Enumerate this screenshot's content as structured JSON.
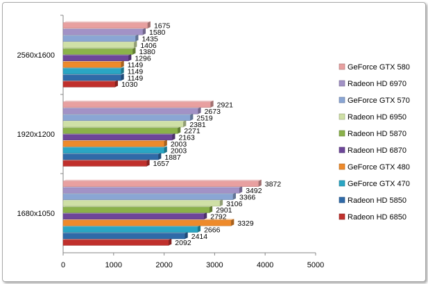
{
  "chart_data": {
    "type": "bar",
    "orientation": "horizontal",
    "title": "",
    "xlabel": "",
    "ylabel": "",
    "xlim": [
      0,
      5000
    ],
    "x_ticks": [
      "0",
      "1000",
      "2000",
      "3000",
      "4000",
      "5000"
    ],
    "categories": [
      "1680x1050",
      "1920x1200",
      "2560x1600"
    ],
    "grid": false,
    "legend_position": "right",
    "series": [
      {
        "name": "Radeon HD 6850",
        "color": "#c0302c",
        "values": [
          2092,
          1657,
          1030
        ]
      },
      {
        "name": "Radeon HD 5850",
        "color": "#2f6aa8",
        "values": [
          2414,
          1887,
          1149
        ]
      },
      {
        "name": "GeForce GTX 470",
        "color": "#2aa6c4",
        "values": [
          2666,
          2003,
          1149
        ]
      },
      {
        "name": "GeForce GTX 480",
        "color": "#ee8a2b",
        "values": [
          3329,
          2003,
          1149
        ]
      },
      {
        "name": "Radeon HD 6870",
        "color": "#6d4699",
        "values": [
          2792,
          2163,
          1296
        ]
      },
      {
        "name": "Radeon HD 5870",
        "color": "#8bb24a",
        "values": [
          2901,
          2271,
          1380
        ]
      },
      {
        "name": "Radeon HD 6950",
        "color": "#cfe0a6",
        "values": [
          3106,
          2381,
          1406
        ]
      },
      {
        "name": "GeForce GTX 570",
        "color": "#8aa6d4",
        "values": [
          3366,
          2519,
          1435
        ]
      },
      {
        "name": "Radeon HD 6970",
        "color": "#a292c6",
        "values": [
          3492,
          2673,
          1580
        ]
      },
      {
        "name": "GeForce GTX 580",
        "color": "#e8a0a0",
        "values": [
          3872,
          2921,
          1675
        ]
      }
    ]
  }
}
